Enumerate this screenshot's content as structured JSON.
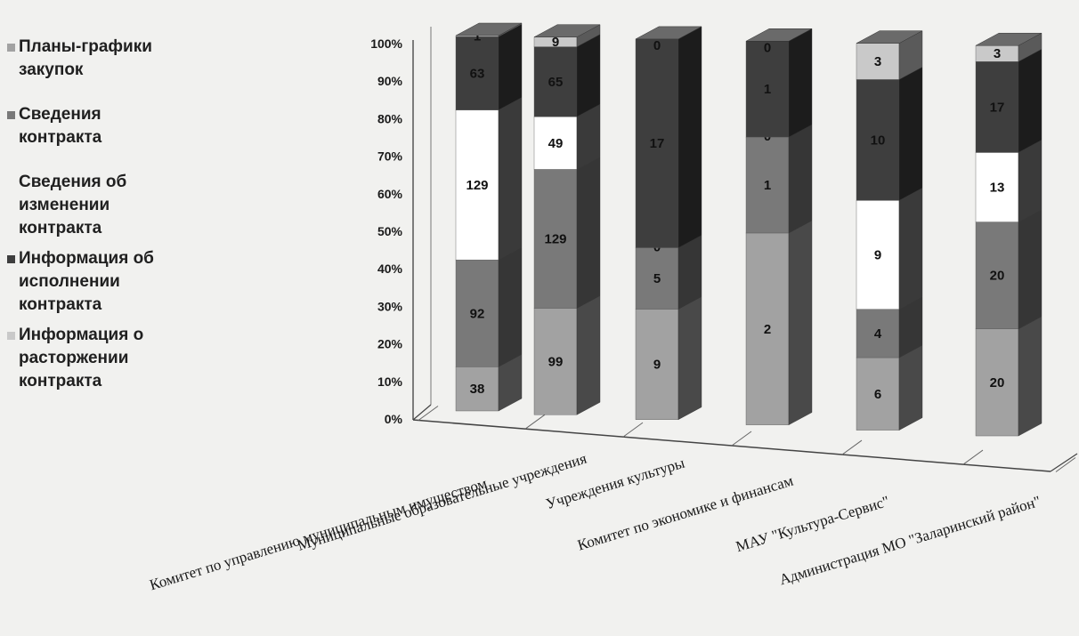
{
  "chart_data": {
    "type": "bar",
    "stacked": "percent",
    "ylim": [
      0,
      100
    ],
    "y_ticks": [
      "0%",
      "10%",
      "20%",
      "30%",
      "40%",
      "50%",
      "60%",
      "70%",
      "80%",
      "90%",
      "100%"
    ],
    "categories": [
      "Комитет по управлению муниципальным имуществом",
      "Муниципальные образовательные учреждения",
      "Учреждения культуры",
      "Комитет по экономике и финансам",
      "МАУ \"Культура-Сервис\"",
      "Администрация МО \"Заларинский район\""
    ],
    "series": [
      {
        "name": "Планы-графики закупок",
        "color": "#a2a2a2",
        "values": [
          38,
          99,
          9,
          2,
          6,
          20
        ]
      },
      {
        "name": "Сведения контракта",
        "color": "#797979",
        "values": [
          92,
          129,
          5,
          1,
          4,
          20
        ]
      },
      {
        "name": "Сведения об изменении контракта",
        "color": "#ffffff",
        "values": [
          129,
          49,
          0,
          0,
          9,
          13
        ]
      },
      {
        "name": "Информация об исполнении контракта",
        "color": "#3e3e3e",
        "values": [
          63,
          65,
          17,
          1,
          10,
          17
        ]
      },
      {
        "name": "Информация о расторжении контракта",
        "color": "#c9c9c9",
        "values": [
          1,
          9,
          0,
          0,
          3,
          3
        ]
      }
    ],
    "legend_position": "left",
    "grid": false
  }
}
